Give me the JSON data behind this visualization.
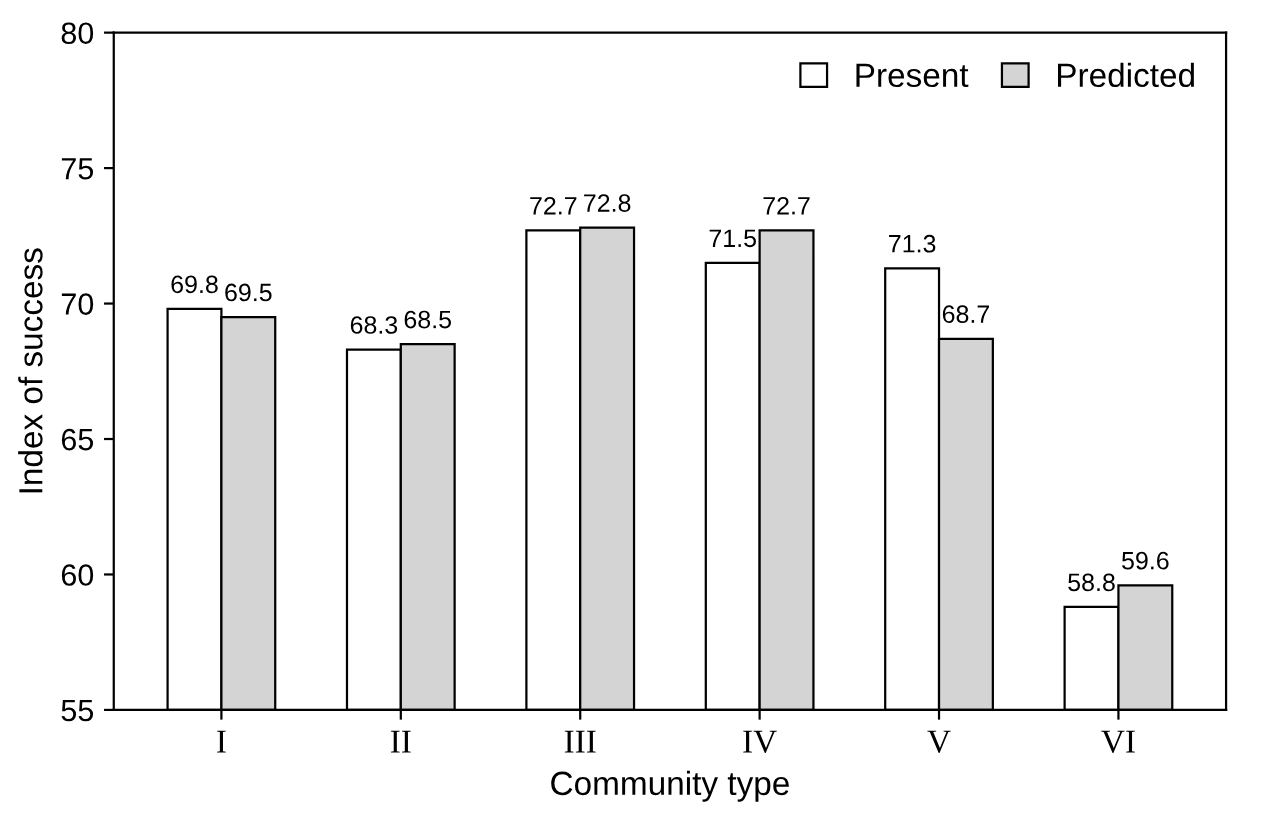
{
  "chart_data": {
    "type": "bar",
    "xlabel": "Community type",
    "ylabel": "Index of success",
    "categories": [
      "I",
      "II",
      "III",
      "IV",
      "V",
      "VI"
    ],
    "series": [
      {
        "name": "Present",
        "color": "#ffffff",
        "values": [
          69.8,
          68.3,
          72.7,
          71.5,
          71.3,
          58.8
        ]
      },
      {
        "name": "Predicted",
        "color": "#d4d4d4",
        "values": [
          69.5,
          68.5,
          72.8,
          72.7,
          68.7,
          59.6
        ]
      }
    ],
    "ylim": [
      55,
      80
    ],
    "yticks": [
      55,
      60,
      65,
      70,
      75,
      80
    ],
    "grid": false,
    "legend": "top right",
    "data_labels": true
  }
}
